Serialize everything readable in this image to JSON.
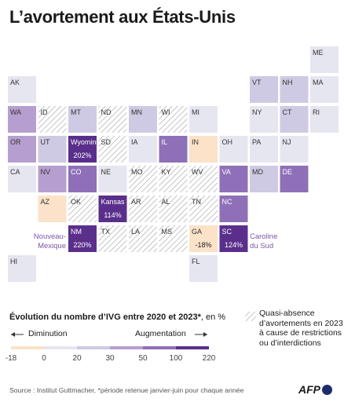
{
  "title": "L’avortement aux États-Unis",
  "chart_data": {
    "type": "tile-map",
    "title": "L’avortement aux États-Unis",
    "states": [
      {
        "code": "ME",
        "col": 10,
        "row": 0,
        "category": "[0;20["
      },
      {
        "code": "AK",
        "col": 0,
        "row": 1,
        "category": "[0;20["
      },
      {
        "code": "VT",
        "col": 8,
        "row": 1,
        "category": "[20;30["
      },
      {
        "code": "NH",
        "col": 9,
        "row": 1,
        "category": "[20;30["
      },
      {
        "code": "MA",
        "col": 10,
        "row": 1,
        "category": "[0;20["
      },
      {
        "code": "WA",
        "col": 0,
        "row": 2,
        "category": "[30;50["
      },
      {
        "code": "ID",
        "col": 1,
        "row": 2,
        "category": "quasi-absence"
      },
      {
        "code": "MT",
        "col": 2,
        "row": 2,
        "category": "[20;30["
      },
      {
        "code": "ND",
        "col": 3,
        "row": 2,
        "category": "quasi-absence"
      },
      {
        "code": "MN",
        "col": 4,
        "row": 2,
        "category": "[20;30["
      },
      {
        "code": "WI",
        "col": 5,
        "row": 2,
        "category": "quasi-absence"
      },
      {
        "code": "MI",
        "col": 6,
        "row": 2,
        "category": "[0;20["
      },
      {
        "code": "NY",
        "col": 8,
        "row": 2,
        "category": "[0;20["
      },
      {
        "code": "CT",
        "col": 9,
        "row": 2,
        "category": "[20;30["
      },
      {
        "code": "RI",
        "col": 10,
        "row": 2,
        "category": "[0;20["
      },
      {
        "code": "OR",
        "col": 0,
        "row": 3,
        "category": "[30;50["
      },
      {
        "code": "UT",
        "col": 1,
        "row": 3,
        "category": "[20;30["
      },
      {
        "code": "WY",
        "col": 2,
        "row": 3,
        "category": "[100;220]",
        "value": 202
      },
      {
        "code": "SD",
        "col": 3,
        "row": 3,
        "category": "quasi-absence"
      },
      {
        "code": "IA",
        "col": 4,
        "row": 3,
        "category": "[0;20["
      },
      {
        "code": "IL",
        "col": 5,
        "row": 3,
        "category": "[50;100["
      },
      {
        "code": "IN",
        "col": 6,
        "row": 3,
        "category": "[-18;0["
      },
      {
        "code": "OH",
        "col": 7,
        "row": 3,
        "category": "[0;20["
      },
      {
        "code": "PA",
        "col": 8,
        "row": 3,
        "category": "[0;20["
      },
      {
        "code": "NJ",
        "col": 9,
        "row": 3,
        "category": "[0;20["
      },
      {
        "code": "CA",
        "col": 0,
        "row": 4,
        "category": "[0;20["
      },
      {
        "code": "NV",
        "col": 1,
        "row": 4,
        "category": "[30;50["
      },
      {
        "code": "CO",
        "col": 2,
        "row": 4,
        "category": "[50;100["
      },
      {
        "code": "NE",
        "col": 3,
        "row": 4,
        "category": "[0;20["
      },
      {
        "code": "MO",
        "col": 4,
        "row": 4,
        "category": "quasi-absence"
      },
      {
        "code": "KY",
        "col": 5,
        "row": 4,
        "category": "quasi-absence"
      },
      {
        "code": "WV",
        "col": 6,
        "row": 4,
        "category": "quasi-absence"
      },
      {
        "code": "VA",
        "col": 7,
        "row": 4,
        "category": "[50;100["
      },
      {
        "code": "MD",
        "col": 8,
        "row": 4,
        "category": "[20;30["
      },
      {
        "code": "DE",
        "col": 9,
        "row": 4,
        "category": "[50;100["
      },
      {
        "code": "AZ",
        "col": 1,
        "row": 5,
        "category": "[-18;0["
      },
      {
        "code": "OK",
        "col": 2,
        "row": 5,
        "category": "quasi-absence"
      },
      {
        "code": "KS",
        "col": 3,
        "row": 5,
        "category": "[100;220]",
        "value": 114
      },
      {
        "code": "AR",
        "col": 4,
        "row": 5,
        "category": "quasi-absence"
      },
      {
        "code": "AL",
        "col": 5,
        "row": 5,
        "category": "quasi-absence"
      },
      {
        "code": "TN",
        "col": 6,
        "row": 5,
        "category": "quasi-absence"
      },
      {
        "code": "NC",
        "col": 7,
        "row": 5,
        "category": "[50;100["
      },
      {
        "code": "NM",
        "col": 2,
        "row": 6,
        "category": "[100;220]",
        "value": 220
      },
      {
        "code": "TX",
        "col": 3,
        "row": 6,
        "category": "quasi-absence"
      },
      {
        "code": "LA",
        "col": 4,
        "row": 6,
        "category": "quasi-absence"
      },
      {
        "code": "MS",
        "col": 5,
        "row": 6,
        "category": "quasi-absence"
      },
      {
        "code": "GA",
        "col": 6,
        "row": 6,
        "category": "[-18;0[",
        "value": -18
      },
      {
        "code": "SC",
        "col": 7,
        "row": 6,
        "category": "[100;220]",
        "value": 124
      },
      {
        "code": "HI",
        "col": 0,
        "row": 7,
        "category": "[0;20["
      },
      {
        "code": "FL",
        "col": 6,
        "row": 7,
        "category": "[0;20["
      }
    ],
    "legend": {
      "bins": [
        "[-18;0[",
        "[0;20[",
        "[20;30[",
        "[30;50[",
        "[50;100[",
        "[100;220]"
      ],
      "ticks": [
        -18,
        0,
        20,
        30,
        50,
        100,
        220
      ]
    }
  },
  "value_labels": {
    "WY": {
      "name": "Wyoming",
      "pct": "202%"
    },
    "KS": {
      "name": "Kansas",
      "pct": "114%"
    },
    "NM": {
      "pct": "220%"
    },
    "SC": {
      "pct": "124%"
    },
    "GA": {
      "pct": "-18%"
    }
  },
  "callouts": {
    "new_mexico_line1": "Nouveau-",
    "new_mexico_line2": "Mexique",
    "south_carolina_line1": "Caroline",
    "south_carolina_line2": "du Sud"
  },
  "legend": {
    "title_bold": "Évolution du nombre d’IVG entre 2020 et 2023*",
    "title_rest": ", en %",
    "decrease": "Diminution",
    "increase": "Augmentation",
    "tick_labels": [
      "-18",
      "0",
      "20",
      "30",
      "50",
      "100",
      "220"
    ],
    "hatched_note": "Quasi-absence d’avortements en 2023 à cause de restrictions ou d’interdictions"
  },
  "colors": {
    "[-18;0[": "#fbe2c8",
    "[0;20[": "#e6e6f1",
    "[20;30[": "#cfcae3",
    "[30;50[": "#b69fd0",
    "[50;100[": "#8f70b8",
    "[100;220]": "#5a2f8c",
    "hatch": "#c8c8c8",
    "accent": "#7b56a8"
  },
  "source": "Source : Institut Guttmacher, *période retenue janvier-juin pour chaque année",
  "logo": "AFP"
}
